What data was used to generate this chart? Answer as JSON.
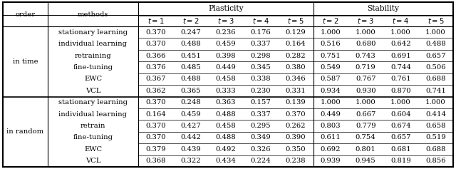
{
  "row_groups": [
    {
      "label": "in time",
      "rows": [
        {
          "method": "stationary learning",
          "plasticity": [
            "0.370",
            "0.247",
            "0.236",
            "0.176",
            "0.129"
          ],
          "stability": [
            "1.000",
            "1.000",
            "1.000",
            "1.000"
          ]
        },
        {
          "method": "individual learning",
          "plasticity": [
            "0.370",
            "0.488",
            "0.459",
            "0.337",
            "0.164"
          ],
          "stability": [
            "0.516",
            "0.680",
            "0.642",
            "0.488"
          ]
        },
        {
          "method": "retraining",
          "plasticity": [
            "0.366",
            "0.451",
            "0.398",
            "0.298",
            "0.282"
          ],
          "stability": [
            "0.751",
            "0.743",
            "0.691",
            "0.657"
          ]
        },
        {
          "method": "fine-tuning",
          "plasticity": [
            "0.376",
            "0.485",
            "0.449",
            "0.345",
            "0.380"
          ],
          "stability": [
            "0.549",
            "0.719",
            "0.744",
            "0.506"
          ]
        },
        {
          "method": "EWC",
          "plasticity": [
            "0.367",
            "0.488",
            "0.458",
            "0.338",
            "0.346"
          ],
          "stability": [
            "0.587",
            "0.767",
            "0.761",
            "0.688"
          ]
        },
        {
          "method": "VCL",
          "plasticity": [
            "0.362",
            "0.365",
            "0.333",
            "0.230",
            "0.331"
          ],
          "stability": [
            "0.934",
            "0.930",
            "0.870",
            "0.741"
          ]
        }
      ]
    },
    {
      "label": "in random",
      "rows": [
        {
          "method": "stationary learning",
          "plasticity": [
            "0.370",
            "0.248",
            "0.363",
            "0.157",
            "0.139"
          ],
          "stability": [
            "1.000",
            "1.000",
            "1.000",
            "1.000"
          ]
        },
        {
          "method": "individual learning",
          "plasticity": [
            "0.164",
            "0.459",
            "0.488",
            "0.337",
            "0.370"
          ],
          "stability": [
            "0.449",
            "0.667",
            "0.604",
            "0.414"
          ]
        },
        {
          "method": "retrain",
          "plasticity": [
            "0.370",
            "0.427",
            "0.458",
            "0.295",
            "0.262"
          ],
          "stability": [
            "0.803",
            "0.779",
            "0.674",
            "0.658"
          ]
        },
        {
          "method": "fine-tuning",
          "plasticity": [
            "0.370",
            "0.442",
            "0.488",
            "0.349",
            "0.390"
          ],
          "stability": [
            "0.611",
            "0.754",
            "0.657",
            "0.519"
          ]
        },
        {
          "method": "EWC",
          "plasticity": [
            "0.379",
            "0.439",
            "0.492",
            "0.326",
            "0.350"
          ],
          "stability": [
            "0.692",
            "0.801",
            "0.681",
            "0.688"
          ]
        },
        {
          "method": "VCL",
          "plasticity": [
            "0.368",
            "0.322",
            "0.434",
            "0.224",
            "0.238"
          ],
          "stability": [
            "0.939",
            "0.945",
            "0.819",
            "0.856"
          ]
        }
      ]
    }
  ],
  "plasticity_t_labels": [
    "t = 1",
    "t = 2",
    "t = 3",
    "t = 4",
    "t = 5"
  ],
  "stability_t_labels": [
    "t = 2",
    "t = 3",
    "t = 4",
    "t = 5"
  ],
  "bg_color": "#ffffff",
  "font_size": 7.2,
  "font_family": "serif"
}
